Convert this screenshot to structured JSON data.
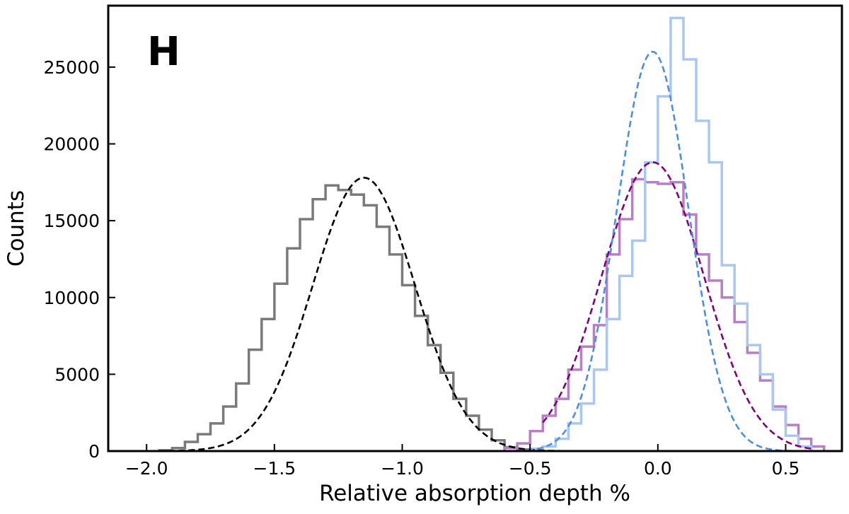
{
  "chart_data": {
    "type": "histogram",
    "panel_label": "H",
    "xlabel": "Relative absorption depth %",
    "ylabel": "Counts",
    "xlim": [
      -2.15,
      0.72
    ],
    "ylim": [
      0,
      29000
    ],
    "grid": false,
    "x_ticks": [
      {
        "value": -2.0,
        "label": "−2.0"
      },
      {
        "value": -1.5,
        "label": "−1.5"
      },
      {
        "value": -1.0,
        "label": "−1.0"
      },
      {
        "value": -0.5,
        "label": "−0.5"
      },
      {
        "value": 0.0,
        "label": "0.0"
      },
      {
        "value": 0.5,
        "label": "0.5"
      }
    ],
    "y_ticks": [
      {
        "value": 0,
        "label": "0"
      },
      {
        "value": 5000,
        "label": "5000"
      },
      {
        "value": 10000,
        "label": "10000"
      },
      {
        "value": 15000,
        "label": "15000"
      },
      {
        "value": 20000,
        "label": "20000"
      },
      {
        "value": 25000,
        "label": "25000"
      }
    ],
    "series": [
      {
        "kind": "step-histogram",
        "color": "#7a7a7a",
        "bin_width": 0.05,
        "bin_start": -1.95,
        "counts": [
          50,
          200,
          600,
          1100,
          1800,
          2900,
          4400,
          6600,
          8600,
          10900,
          13200,
          15100,
          16400,
          17300,
          17000,
          16700,
          16000,
          14600,
          12800,
          10800,
          8800,
          6900,
          5100,
          3400,
          2300,
          1400,
          700,
          250,
          100
        ]
      },
      {
        "kind": "step-histogram",
        "color": "#b67fc6",
        "bin_width": 0.05,
        "bin_start": -0.6,
        "counts": [
          200,
          500,
          1300,
          2300,
          3400,
          5300,
          6800,
          8200,
          12800,
          15100,
          17700,
          17500,
          17400,
          17500,
          15400,
          12800,
          11100,
          10000,
          8400,
          6400,
          4600,
          2900,
          1700,
          800,
          300
        ]
      },
      {
        "kind": "step-histogram",
        "color": "#a9c7f0",
        "bin_width": 0.05,
        "bin_start": -0.5,
        "counts": [
          150,
          300,
          800,
          1800,
          3100,
          5300,
          8600,
          11400,
          13700,
          18800,
          23100,
          28200,
          25500,
          21500,
          18800,
          12100,
          9600,
          6900,
          5000,
          2700,
          1000,
          300
        ]
      },
      {
        "kind": "gaussian-fit",
        "color": "#000000",
        "dash": true,
        "mu": -1.15,
        "sigma": 0.2,
        "amplitude": 17800,
        "xrange": [
          -2.03,
          -0.25
        ]
      },
      {
        "kind": "gaussian-fit",
        "color": "#800080",
        "dash": true,
        "mu": -0.02,
        "sigma": 0.2,
        "amplitude": 18800,
        "xrange": [
          -0.45,
          0.61
        ]
      },
      {
        "kind": "gaussian-fit",
        "color": "#4a90e2",
        "dash": true,
        "mu": -0.02,
        "sigma": 0.14,
        "amplitude": 26000,
        "xrange": [
          -0.55,
          0.55
        ]
      }
    ]
  }
}
